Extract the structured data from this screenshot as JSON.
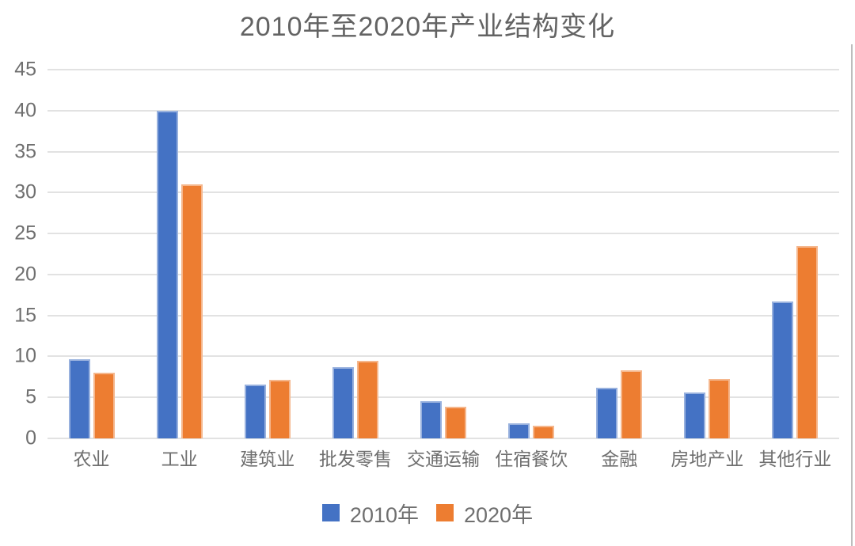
{
  "chart_data": {
    "type": "bar",
    "title": "2010年至2020年产业结构变化",
    "categories": [
      "农业",
      "工业",
      "建筑业",
      "批发零售",
      "交通运输",
      "住宿餐饮",
      "金融",
      "房地产业",
      "其他行业"
    ],
    "series": [
      {
        "name": "2010年",
        "color": "#4472C4",
        "values": [
          9.7,
          40.0,
          6.6,
          8.7,
          4.5,
          1.8,
          6.2,
          5.6,
          16.7
        ]
      },
      {
        "name": "2020年",
        "color": "#ED7D31",
        "values": [
          8.0,
          31.0,
          7.1,
          9.5,
          3.9,
          1.5,
          8.3,
          7.2,
          23.5
        ]
      }
    ],
    "xlabel": "",
    "ylabel": "",
    "ylim": [
      0,
      45
    ],
    "ytick_step": 5,
    "ytick_labels": [
      "0",
      "5",
      "10",
      "15",
      "20",
      "25",
      "30",
      "35",
      "40",
      "45"
    ],
    "grid": true,
    "legend_position": "bottom"
  },
  "colors": {
    "background": "#ffffff",
    "title_text": "#636363",
    "axis_text": "#6f6f6f",
    "gridline": "#e2e2e2",
    "right_border": "#bdbdbd",
    "series_2010": "#4472C4",
    "series_2020": "#ED7D31"
  }
}
